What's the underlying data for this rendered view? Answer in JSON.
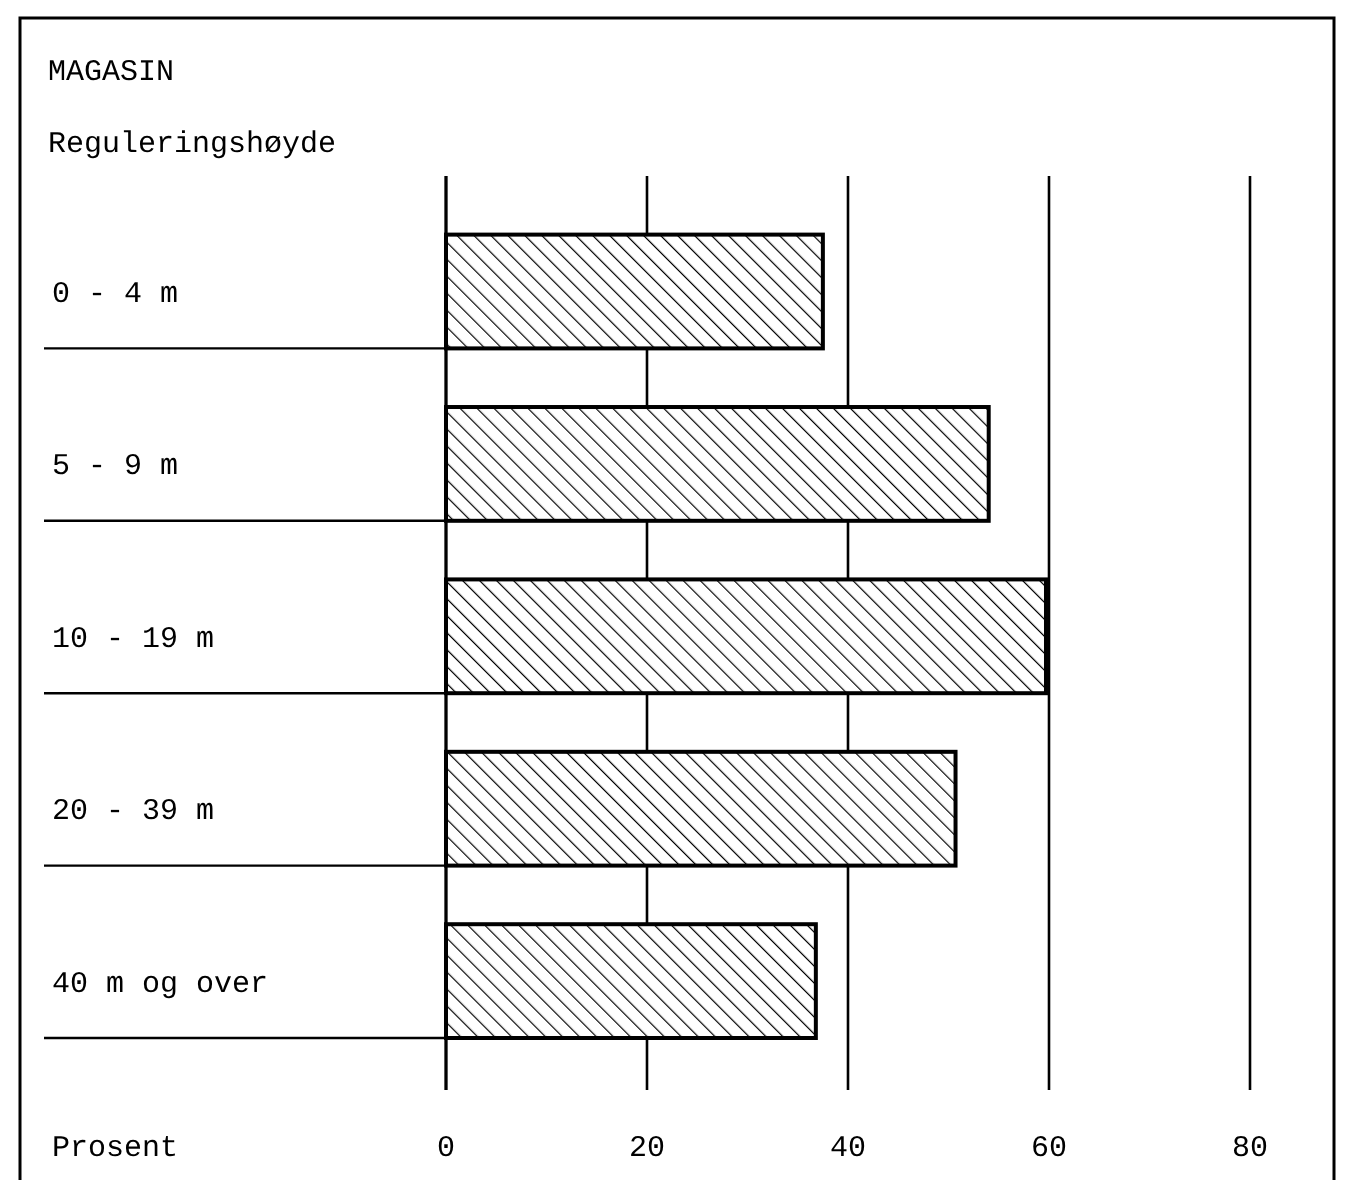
{
  "chart_data": {
    "type": "bar",
    "orientation": "horizontal",
    "title": "MAGASIN",
    "ylabel": "Reguleringshøyde",
    "xlabel": "Prosent",
    "categories": [
      "0 -  4 m",
      "5 -  9 m",
      "10 - 19 m",
      "20 - 39 m",
      "40 m og over"
    ],
    "values": [
      37.5,
      54,
      59.7,
      50.7,
      36.8
    ],
    "color": "#000000",
    "xlim": [
      0,
      80
    ],
    "xticks": [
      0,
      20,
      40,
      60,
      80
    ],
    "grid": "x"
  }
}
